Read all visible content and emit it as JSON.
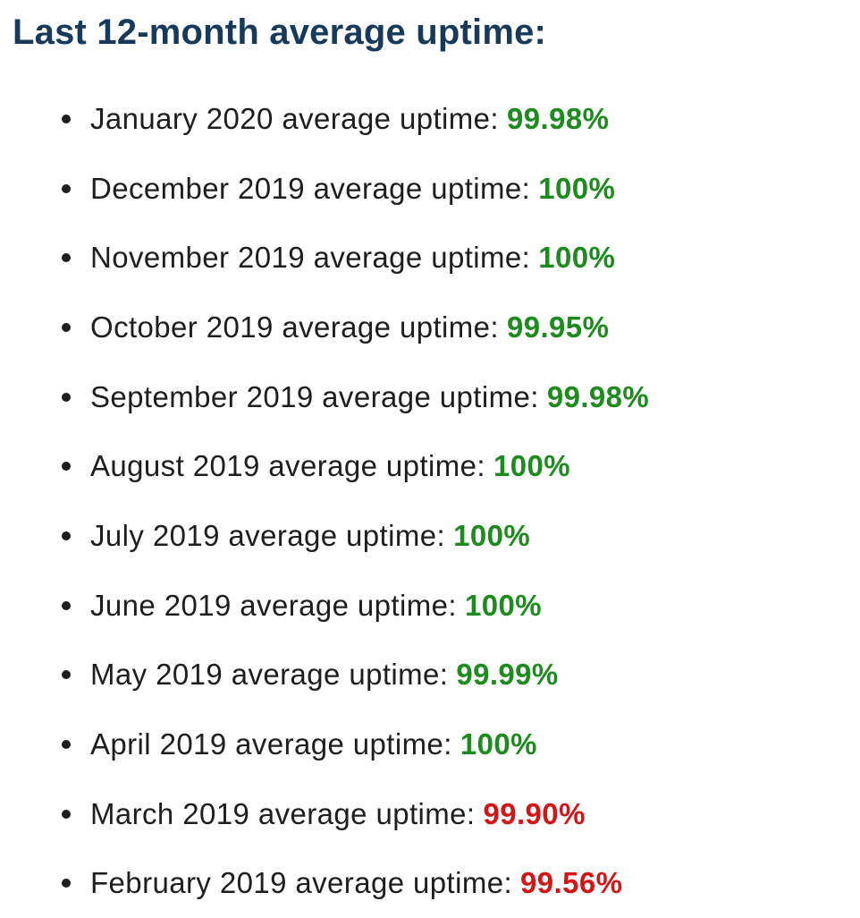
{
  "heading": "Last 12-month average uptime:",
  "colors": {
    "heading": "#183a5a",
    "text": "#1e1e1e",
    "good": "#1f8a1f",
    "bad": "#d01717"
  },
  "months": [
    {
      "label": "January 2020 average uptime:",
      "value": "99.98%",
      "status": "good"
    },
    {
      "label": "December 2019 average uptime:",
      "value": "100%",
      "status": "good"
    },
    {
      "label": "November 2019 average uptime:",
      "value": "100%",
      "status": "good"
    },
    {
      "label": "October 2019 average uptime:",
      "value": "99.95%",
      "status": "good"
    },
    {
      "label": "September 2019 average uptime:",
      "value": "99.98%",
      "status": "good"
    },
    {
      "label": "August 2019 average uptime:",
      "value": "100%",
      "status": "good"
    },
    {
      "label": "July 2019 average uptime:",
      "value": "100%",
      "status": "good"
    },
    {
      "label": "June 2019 average uptime:",
      "value": "100%",
      "status": "good"
    },
    {
      "label": "May 2019 average uptime:",
      "value": "99.99%",
      "status": "good"
    },
    {
      "label": "April 2019 average uptime:",
      "value": "100%",
      "status": "good"
    },
    {
      "label": "March 2019 average uptime:",
      "value": "99.90%",
      "status": "bad"
    },
    {
      "label": "February 2019 average uptime:",
      "value": "99.56%",
      "status": "bad"
    }
  ]
}
